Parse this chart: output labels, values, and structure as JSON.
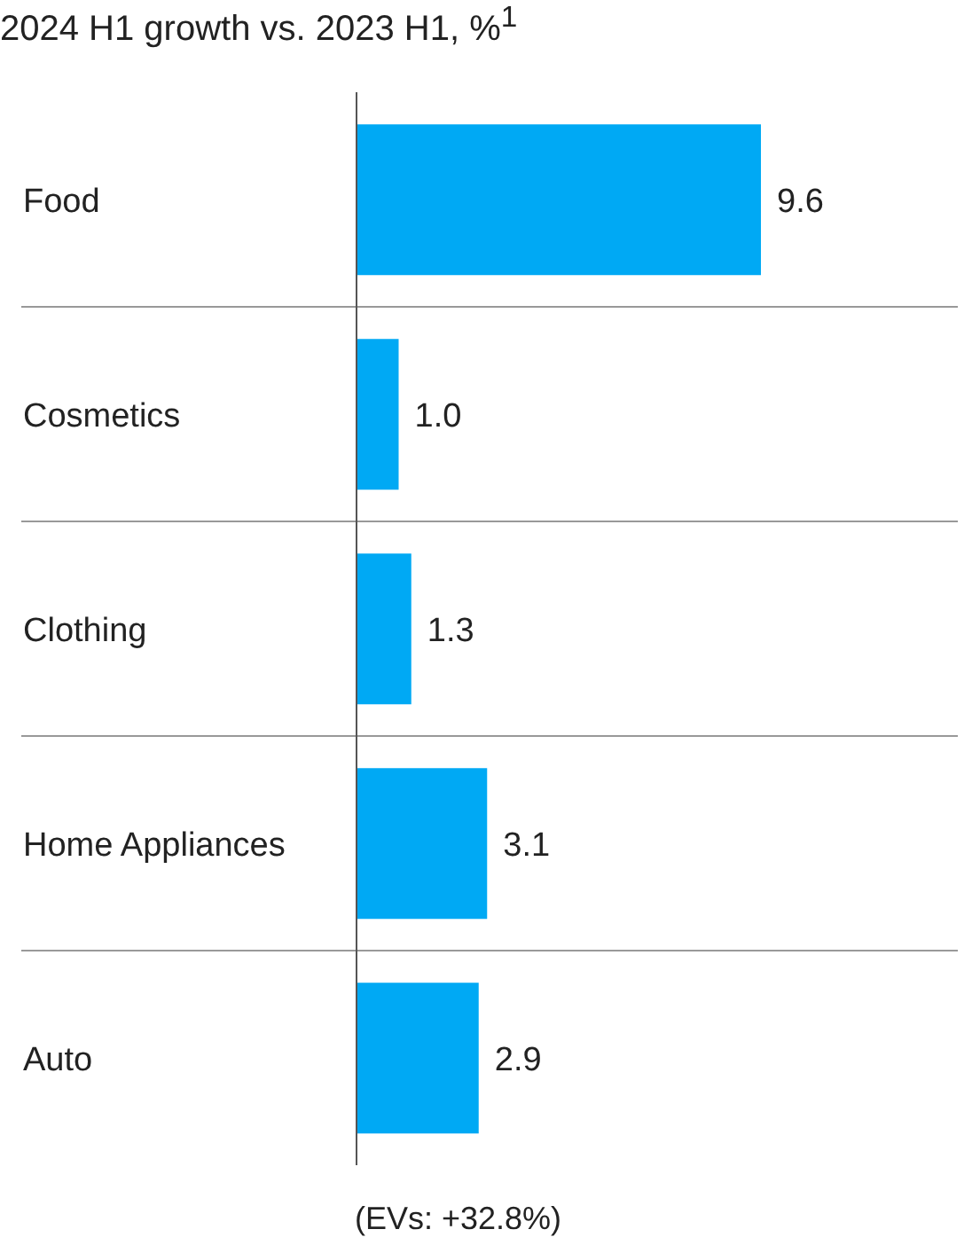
{
  "chart_data": {
    "type": "bar",
    "orientation": "horizontal",
    "title": "2024 H1 growth vs. 2023 H1, %$^{1}$",
    "categories": [
      "Food",
      "Cosmetics",
      "Clothing",
      "Home Appliances",
      "Auto"
    ],
    "values": [
      9.6,
      1.0,
      1.3,
      3.1,
      2.9
    ],
    "color": "#00a9f4",
    "value_labels": [
      "9.6",
      "1.0",
      "1.3",
      "3.1",
      "2.9"
    ],
    "grid": "y",
    "annotations": [
      "(EVs: +32.8%)"
    ]
  }
}
